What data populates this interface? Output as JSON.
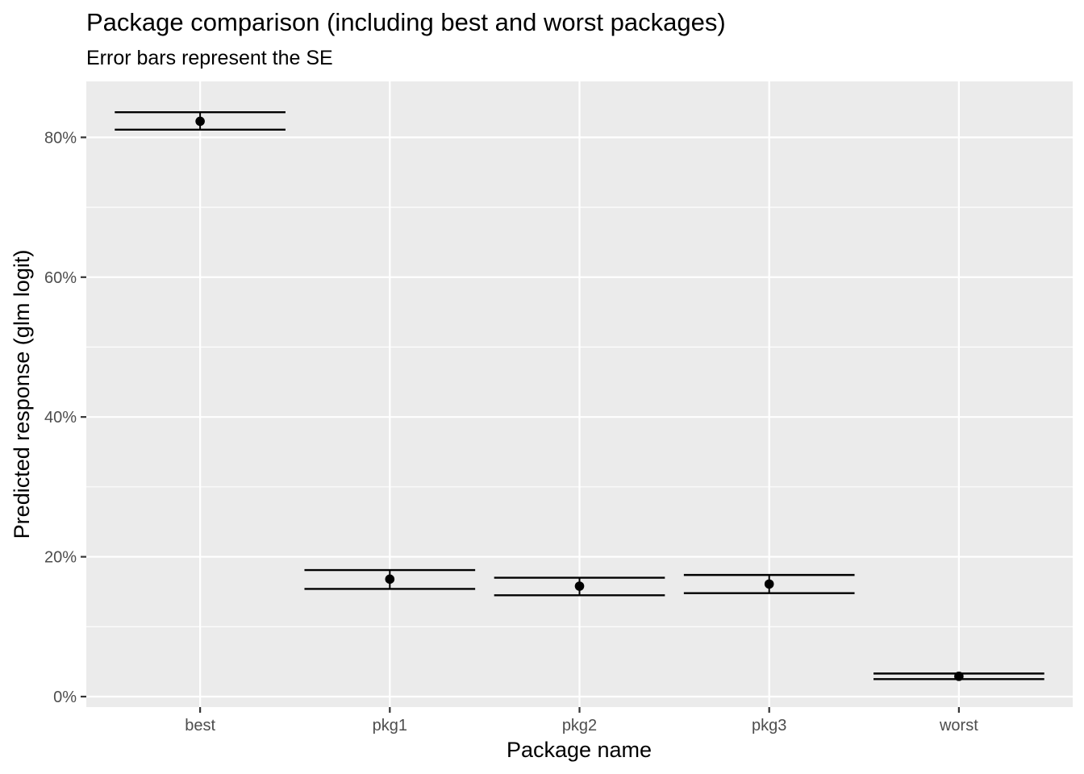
{
  "chart_data": {
    "type": "scatter",
    "title": "Package comparison (including best and worst packages)",
    "subtitle": "Error bars represent the SE",
    "xlabel": "Package name",
    "ylabel": "Predicted response (glm logit)",
    "categories": [
      "best",
      "pkg1",
      "pkg2",
      "pkg3",
      "worst"
    ],
    "points": [
      {
        "category": "best",
        "y": 82.3,
        "lower": 81.1,
        "upper": 83.6
      },
      {
        "category": "pkg1",
        "y": 16.8,
        "lower": 15.4,
        "upper": 18.1
      },
      {
        "category": "pkg2",
        "y": 15.8,
        "lower": 14.5,
        "upper": 17.0
      },
      {
        "category": "pkg3",
        "y": 16.1,
        "lower": 14.8,
        "upper": 17.4
      },
      {
        "category": "worst",
        "y": 2.9,
        "lower": 2.5,
        "upper": 3.3
      }
    ],
    "ylim": [
      -1.5,
      88
    ],
    "y_major_ticks": [
      0,
      20,
      40,
      60,
      80
    ],
    "y_minor_ticks": [
      10,
      30,
      50,
      70
    ],
    "y_tick_labels": [
      "0%",
      "20%",
      "40%",
      "60%",
      "80%"
    ],
    "grid": true,
    "panel_background": "#ebebeb",
    "grid_color": "#ffffff",
    "mark_color": "#000000"
  }
}
